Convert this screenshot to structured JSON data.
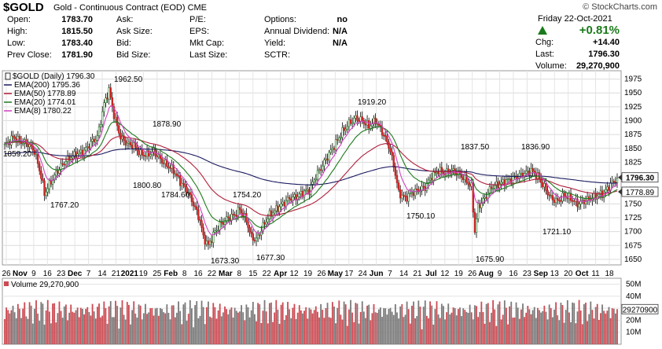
{
  "header": {
    "symbol": "$GOLD",
    "name": "Gold - Continuous Contract (EOD)",
    "exchange": "CME",
    "credit": "© StockCharts.com",
    "date": "Friday   22-Oct-2021",
    "pct_change": "+0.81%",
    "up_color": "#1a7a1a"
  },
  "quote": {
    "col1": [
      {
        "label": "Open:",
        "value": "1783.70"
      },
      {
        "label": "High:",
        "value": "1815.50"
      },
      {
        "label": "Low:",
        "value": "1783.40"
      },
      {
        "label": "Prev Close:",
        "value": "1781.90"
      }
    ],
    "col2": [
      {
        "label": "Ask:",
        "value": ""
      },
      {
        "label": "Ask Size:",
        "value": ""
      },
      {
        "label": "Bid:",
        "value": ""
      },
      {
        "label": "Bid Size:",
        "value": ""
      }
    ],
    "col3": [
      {
        "label": "P/E:",
        "value": ""
      },
      {
        "label": "EPS:",
        "value": ""
      },
      {
        "label": "Mkt Cap:",
        "value": ""
      },
      {
        "label": "Last Size:",
        "value": ""
      }
    ],
    "col4": [
      {
        "label": "Options:",
        "value": "no"
      },
      {
        "label": "Annual Dividend:",
        "value": "N/A"
      },
      {
        "label": "Yield:",
        "value": "N/A"
      },
      {
        "label": "SCTR:",
        "value": ""
      }
    ],
    "col5": [
      {
        "label": "Chg:",
        "value": "+14.40"
      },
      {
        "label": "Last:",
        "value": "1796.30"
      },
      {
        "label": "Volume:",
        "value": "29,270,900"
      }
    ]
  },
  "chart_data": [
    {
      "type": "candlestick",
      "title": "$GOLD (Daily) 1796.30",
      "ylim": [
        1640,
        1990
      ],
      "y_ticks": [
        1650,
        1675,
        1700,
        1725,
        1750,
        1775,
        1800,
        1825,
        1850,
        1875,
        1900,
        1925,
        1950,
        1975
      ],
      "grid": true,
      "x_tick_labels": [
        "26",
        "Nov",
        "9",
        "16",
        "23",
        "Dec",
        "7",
        "14",
        "21",
        "2021",
        "19",
        "25",
        "Feb",
        "8",
        "16",
        "22",
        "Mar",
        "8",
        "15",
        "22",
        "Apr",
        "12",
        "19",
        "26",
        "May",
        "17",
        "24",
        "Jun",
        "7",
        "14",
        "21",
        "Jul",
        "12",
        "19",
        "26",
        "Aug",
        "9",
        "16",
        "23",
        "Sep",
        "13",
        "20",
        "Oct",
        "11",
        "18"
      ],
      "legend": [
        {
          "label": "$GOLD (Daily) 1796.30",
          "color": "#000000"
        },
        {
          "label": "EMA(200) 1795.36",
          "color": "#1a1a60"
        },
        {
          "label": "EMA(50) 1778.89",
          "color": "#b0203c"
        },
        {
          "label": "EMA(20) 1774.01",
          "color": "#1e7a1e"
        },
        {
          "label": "EMA(8) 1780.22",
          "color": "#d040c0"
        }
      ],
      "annotations": [
        {
          "text": "1962.50",
          "value": 1962.5
        },
        {
          "text": "1859.20",
          "value": 1859.2
        },
        {
          "text": "1767.20",
          "value": 1767.2
        },
        {
          "text": "1878.90",
          "value": 1878.9
        },
        {
          "text": "1800.80",
          "value": 1800.8
        },
        {
          "text": "1784.60",
          "value": 1784.6
        },
        {
          "text": "1754.20",
          "value": 1754.2
        },
        {
          "text": "1673.30",
          "value": 1673.3
        },
        {
          "text": "1677.30",
          "value": 1677.3
        },
        {
          "text": "1919.20",
          "value": 1919.2
        },
        {
          "text": "1750.10",
          "value": 1750.1
        },
        {
          "text": "1837.50",
          "value": 1837.5
        },
        {
          "text": "1675.90",
          "value": 1675.9
        },
        {
          "text": "1836.90",
          "value": 1836.9
        },
        {
          "text": "1721.10",
          "value": 1721.1
        }
      ],
      "last_labels": [
        {
          "text": "1796.30",
          "value": 1796.3
        },
        {
          "text": "1778.89",
          "value": 1778.89
        }
      ],
      "close_path": [
        [
          0,
          1855
        ],
        [
          5,
          1870
        ],
        [
          10,
          1862
        ],
        [
          14,
          1858
        ],
        [
          18,
          1845
        ],
        [
          22,
          1800
        ],
        [
          24,
          1768
        ],
        [
          28,
          1790
        ],
        [
          32,
          1810
        ],
        [
          36,
          1825
        ],
        [
          40,
          1835
        ],
        [
          44,
          1840
        ],
        [
          48,
          1845
        ],
        [
          52,
          1860
        ],
        [
          56,
          1870
        ],
        [
          60,
          1930
        ],
        [
          63,
          1955
        ],
        [
          66,
          1910
        ],
        [
          70,
          1870
        ],
        [
          74,
          1858
        ],
        [
          78,
          1855
        ],
        [
          82,
          1840
        ],
        [
          86,
          1838
        ],
        [
          90,
          1845
        ],
        [
          94,
          1830
        ],
        [
          98,
          1820
        ],
        [
          102,
          1810
        ],
        [
          106,
          1790
        ],
        [
          110,
          1775
        ],
        [
          114,
          1750
        ],
        [
          118,
          1720
        ],
        [
          120,
          1690
        ],
        [
          123,
          1675
        ],
        [
          127,
          1700
        ],
        [
          131,
          1715
        ],
        [
          135,
          1725
        ],
        [
          139,
          1730
        ],
        [
          142,
          1740
        ],
        [
          146,
          1720
        ],
        [
          149,
          1690
        ],
        [
          152,
          1685
        ],
        [
          156,
          1710
        ],
        [
          160,
          1730
        ],
        [
          164,
          1740
        ],
        [
          168,
          1750
        ],
        [
          172,
          1760
        ],
        [
          176,
          1762
        ],
        [
          180,
          1770
        ],
        [
          184,
          1775
        ],
        [
          188,
          1800
        ],
        [
          192,
          1820
        ],
        [
          196,
          1840
        ],
        [
          200,
          1860
        ],
        [
          204,
          1880
        ],
        [
          208,
          1895
        ],
        [
          212,
          1905
        ],
        [
          216,
          1900
        ],
        [
          220,
          1890
        ],
        [
          224,
          1900
        ],
        [
          228,
          1880
        ],
        [
          232,
          1855
        ],
        [
          235,
          1820
        ],
        [
          238,
          1770
        ],
        [
          242,
          1760
        ],
        [
          246,
          1770
        ],
        [
          250,
          1775
        ],
        [
          254,
          1780
        ],
        [
          258,
          1800
        ],
        [
          262,
          1810
        ],
        [
          266,
          1805
        ],
        [
          270,
          1810
        ],
        [
          274,
          1805
        ],
        [
          278,
          1795
        ],
        [
          282,
          1780
        ],
        [
          284,
          1700
        ],
        [
          286,
          1745
        ],
        [
          290,
          1760
        ],
        [
          294,
          1780
        ],
        [
          298,
          1785
        ],
        [
          302,
          1790
        ],
        [
          306,
          1795
        ],
        [
          310,
          1800
        ],
        [
          314,
          1805
        ],
        [
          318,
          1810
        ],
        [
          322,
          1800
        ],
        [
          326,
          1780
        ],
        [
          330,
          1760
        ],
        [
          334,
          1755
        ],
        [
          338,
          1765
        ],
        [
          342,
          1760
        ],
        [
          346,
          1750
        ],
        [
          350,
          1755
        ],
        [
          354,
          1760
        ],
        [
          358,
          1765
        ],
        [
          362,
          1770
        ],
        [
          366,
          1785
        ],
        [
          370,
          1796
        ]
      ]
    },
    {
      "type": "bar",
      "title": "Volume 29,270,900",
      "ylim": [
        0,
        55000000
      ],
      "y_ticks": [
        {
          "value": 10000000,
          "label": "10M"
        },
        {
          "value": 20000000,
          "label": "20M"
        },
        {
          "value": 30000000,
          "label": "30M"
        },
        {
          "value": 40000000,
          "label": "40M"
        },
        {
          "value": 50000000,
          "label": "50M"
        }
      ],
      "last_label": {
        "text": "29270900",
        "value": 29270900
      },
      "up_color": "#cc4a52",
      "down_color": "#7a7a7a"
    }
  ]
}
